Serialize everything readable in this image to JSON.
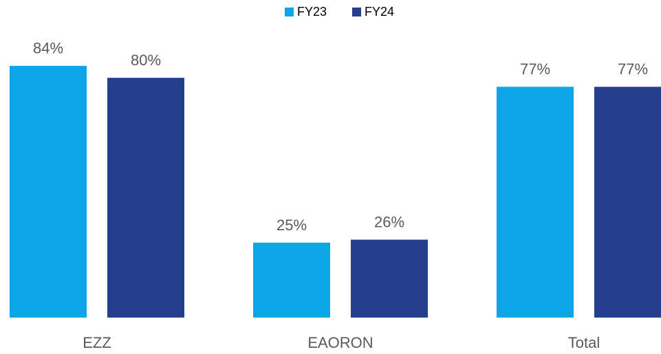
{
  "chart_data": {
    "type": "bar",
    "categories": [
      "EZZ",
      "EAORON",
      "Total"
    ],
    "series": [
      {
        "name": "FY23",
        "color": "#0ba7e6",
        "values": [
          84,
          25,
          77
        ],
        "value_labels": [
          "84%",
          "25%",
          "77%"
        ]
      },
      {
        "name": "FY24",
        "color": "#253f8f",
        "values": [
          80,
          26,
          77
        ],
        "value_labels": [
          "80%",
          "26%",
          "77%"
        ]
      }
    ],
    "ylim": [
      0,
      100
    ],
    "legend": "top"
  }
}
